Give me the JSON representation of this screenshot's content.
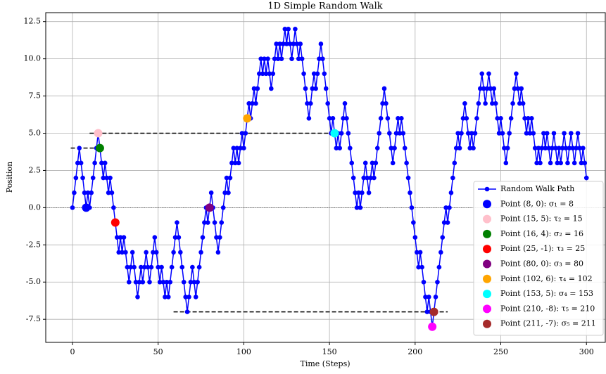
{
  "chart_data": {
    "type": "line",
    "title": "1D Simple Random Walk",
    "x_label": "Time (Steps)",
    "y_label": "Position",
    "x": [
      0,
      1,
      2,
      3,
      4,
      5,
      6,
      7,
      8,
      9,
      10,
      11,
      12,
      13,
      14,
      15,
      16,
      17,
      18,
      19,
      20,
      21,
      22,
      23,
      24,
      25,
      26,
      27,
      28,
      29,
      30,
      31,
      32,
      33,
      34,
      35,
      36,
      37,
      38,
      39,
      40,
      41,
      42,
      43,
      44,
      45,
      46,
      47,
      48,
      49,
      50,
      51,
      52,
      53,
      54,
      55,
      56,
      57,
      58,
      59,
      60,
      61,
      62,
      63,
      64,
      65,
      66,
      67,
      68,
      69,
      70,
      71,
      72,
      73,
      74,
      75,
      76,
      77,
      78,
      79,
      80,
      81,
      82,
      83,
      84,
      85,
      86,
      87,
      88,
      89,
      90,
      91,
      92,
      93,
      94,
      95,
      96,
      97,
      98,
      99,
      100,
      101,
      102,
      103,
      104,
      105,
      106,
      107,
      108,
      109,
      110,
      111,
      112,
      113,
      114,
      115,
      116,
      117,
      118,
      119,
      120,
      121,
      122,
      123,
      124,
      125,
      126,
      127,
      128,
      129,
      130,
      131,
      132,
      133,
      134,
      135,
      136,
      137,
      138,
      139,
      140,
      141,
      142,
      143,
      144,
      145,
      146,
      147,
      148,
      149,
      150,
      151,
      152,
      153,
      154,
      155,
      156,
      157,
      158,
      159,
      160,
      161,
      162,
      163,
      164,
      165,
      166,
      167,
      168,
      169,
      170,
      171,
      172,
      173,
      174,
      175,
      176,
      177,
      178,
      179,
      180,
      181,
      182,
      183,
      184,
      185,
      186,
      187,
      188,
      189,
      190,
      191,
      192,
      193,
      194,
      195,
      196,
      197,
      198,
      199,
      200,
      201,
      202,
      203,
      204,
      205,
      206,
      207,
      208,
      209,
      210,
      211,
      212,
      213,
      214,
      215,
      216,
      217,
      218,
      219,
      220,
      221,
      222,
      223,
      224,
      225,
      226,
      227,
      228,
      229,
      230,
      231,
      232,
      233,
      234,
      235,
      236,
      237,
      238,
      239,
      240,
      241,
      242,
      243,
      244,
      245,
      246,
      247,
      248,
      249,
      250,
      251,
      252,
      253,
      254,
      255,
      256,
      257,
      258,
      259,
      260,
      261,
      262,
      263,
      264,
      265,
      266,
      267,
      268,
      269,
      270,
      271,
      272,
      273,
      274,
      275,
      276,
      277,
      278,
      279,
      280,
      281,
      282,
      283,
      284,
      285,
      286,
      287,
      288,
      289,
      290,
      291,
      292,
      293,
      294,
      295,
      296,
      297,
      298,
      299,
      300
    ],
    "series": [
      {
        "name": "Random Walk Path",
        "color": "#0000ff",
        "values": [
          0,
          1,
          2,
          3,
          4,
          3,
          2,
          1,
          0,
          1,
          0,
          1,
          2,
          3,
          4,
          5,
          4,
          3,
          2,
          3,
          2,
          1,
          2,
          1,
          0,
          -1,
          -2,
          -3,
          -2,
          -3,
          -2,
          -3,
          -4,
          -5,
          -4,
          -3,
          -4,
          -5,
          -6,
          -5,
          -4,
          -5,
          -4,
          -3,
          -4,
          -5,
          -4,
          -3,
          -2,
          -3,
          -4,
          -5,
          -4,
          -5,
          -6,
          -5,
          -6,
          -5,
          -4,
          -3,
          -2,
          -1,
          -2,
          -3,
          -4,
          -5,
          -6,
          -7,
          -6,
          -5,
          -4,
          -5,
          -6,
          -5,
          -4,
          -3,
          -2,
          -1,
          0,
          -1,
          0,
          1,
          0,
          -1,
          -2,
          -3,
          -2,
          -1,
          0,
          1,
          2,
          1,
          2,
          3,
          4,
          3,
          4,
          3,
          4,
          5,
          4,
          5,
          6,
          7,
          6,
          7,
          8,
          7,
          8,
          9,
          10,
          9,
          10,
          9,
          10,
          9,
          8,
          9,
          10,
          11,
          10,
          11,
          10,
          11,
          12,
          11,
          12,
          11,
          10,
          11,
          12,
          11,
          10,
          11,
          10,
          9,
          8,
          7,
          6,
          7,
          8,
          9,
          8,
          9,
          10,
          11,
          10,
          9,
          8,
          7,
          6,
          5,
          6,
          5,
          4,
          5,
          4,
          5,
          6,
          7,
          6,
          5,
          4,
          3,
          2,
          1,
          0,
          1,
          0,
          1,
          2,
          3,
          2,
          1,
          2,
          3,
          2,
          3,
          4,
          5,
          6,
          7,
          8,
          7,
          6,
          5,
          4,
          3,
          4,
          5,
          6,
          5,
          6,
          5,
          4,
          3,
          2,
          1,
          0,
          -1,
          -2,
          -3,
          -4,
          -3,
          -4,
          -5,
          -6,
          -7,
          -6,
          -7,
          -8,
          -7,
          -6,
          -5,
          -4,
          -3,
          -2,
          -1,
          0,
          -1,
          0,
          1,
          2,
          3,
          4,
          5,
          4,
          5,
          6,
          7,
          6,
          5,
          4,
          5,
          4,
          5,
          6,
          7,
          8,
          9,
          8,
          7,
          8,
          9,
          8,
          7,
          8,
          7,
          6,
          5,
          6,
          5,
          4,
          3,
          4,
          5,
          6,
          7,
          8,
          9,
          8,
          7,
          8,
          7,
          6,
          5,
          6,
          5,
          6,
          5,
          4,
          3,
          4,
          3,
          4,
          5,
          4,
          5,
          4,
          3,
          4,
          5,
          4,
          3,
          4,
          3,
          4,
          5,
          4,
          3,
          4,
          5,
          4,
          3,
          4,
          5,
          4,
          3,
          4,
          3,
          2
        ]
      }
    ],
    "points": [
      {
        "name": "Point (8, 0): σ₁ = 8",
        "x": 8,
        "y": 0,
        "color": "#0000ff"
      },
      {
        "name": "Point (15, 5): τ₂ = 15",
        "x": 15,
        "y": 5,
        "color": "#ffc0cb"
      },
      {
        "name": "Point (16, 4): σ₂ = 16",
        "x": 16,
        "y": 4,
        "color": "#008000"
      },
      {
        "name": "Point (25, -1): τ₃ = 25",
        "x": 25,
        "y": -1,
        "color": "#ff0000"
      },
      {
        "name": "Point (80, 0): σ₃ = 80",
        "x": 80,
        "y": 0,
        "color": "#800080"
      },
      {
        "name": "Point (102, 6): τ₄ = 102",
        "x": 102,
        "y": 6,
        "color": "#ffa500"
      },
      {
        "name": "Point (153, 5): σ₄ = 153",
        "x": 153,
        "y": 5,
        "color": "#00ffff"
      },
      {
        "name": "Point (210, -8): τ₅ = 210",
        "x": 210,
        "y": -8,
        "color": "#ff00ff"
      },
      {
        "name": "Point (211, -7): σ₅ = 211",
        "x": 211,
        "y": -7,
        "color": "#a52a2a"
      }
    ],
    "hlines": [
      {
        "y": 4,
        "xmin": -1,
        "xmax": 16
      },
      {
        "y": 5,
        "xmin": 10,
        "xmax": 153
      },
      {
        "y": -7,
        "xmin": 59,
        "xmax": 219
      }
    ],
    "reference_line": 0,
    "xlim": [
      -15.6,
      311
    ],
    "ylim": [
      -9.05,
      13.1
    ],
    "xticks": [
      0,
      50,
      100,
      150,
      200,
      250,
      300
    ],
    "yticks": [
      -7.5,
      {
        "value": -5,
        "label": "-5.0"
      },
      -2.5,
      {
        "value": 0,
        "label": "0.0"
      },
      2.5,
      {
        "value": 5,
        "label": "5.0"
      },
      7.5,
      {
        "value": 10,
        "label": "10.0"
      },
      12.5
    ],
    "grid": true,
    "legend": "lower right"
  }
}
